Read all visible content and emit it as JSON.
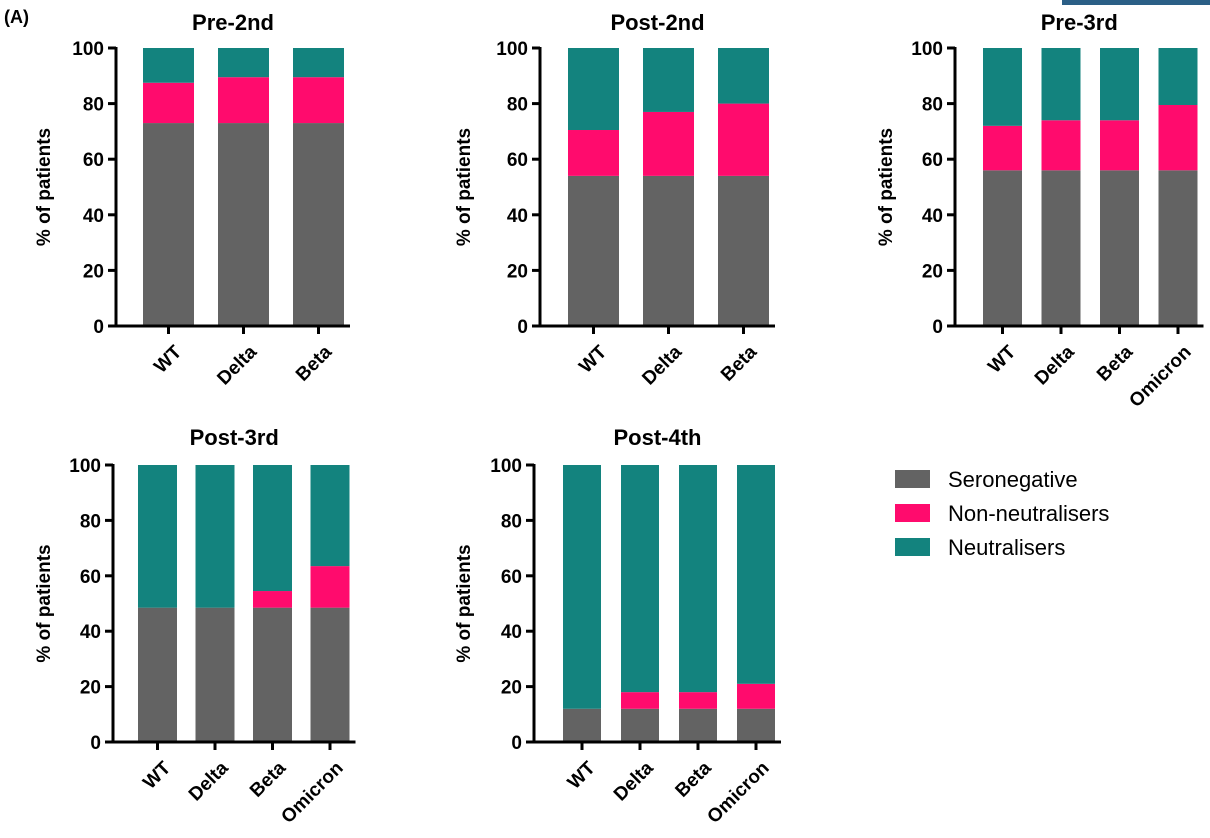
{
  "panel_label": "(A)",
  "colors": {
    "seronegative": "#636363",
    "non_neutralisers": "#ff0b6d",
    "neutralisers": "#13837e",
    "axis": "#000000"
  },
  "legend": {
    "placement": "right",
    "items": [
      {
        "label": "Seronegative",
        "color_key": "seronegative"
      },
      {
        "label": "Non-neutralisers",
        "color_key": "non_neutralisers"
      },
      {
        "label": "Neutralisers",
        "color_key": "neutralisers"
      }
    ]
  },
  "chart_data": [
    {
      "type": "bar",
      "stacked": true,
      "title": "Pre-2nd",
      "ylabel": "% of patients",
      "ylim": [
        0,
        100
      ],
      "yticks": [
        0,
        20,
        40,
        60,
        80,
        100
      ],
      "categories": [
        "WT",
        "Delta",
        "Beta"
      ],
      "series": [
        {
          "name": "Seronegative",
          "values": [
            73,
            73,
            73
          ]
        },
        {
          "name": "Non-neutralisers",
          "values": [
            14.5,
            16.5,
            16.5
          ]
        },
        {
          "name": "Neutralisers",
          "values": [
            12.5,
            10.5,
            10.5
          ]
        }
      ]
    },
    {
      "type": "bar",
      "stacked": true,
      "title": "Post-2nd",
      "ylabel": "% of patients",
      "ylim": [
        0,
        100
      ],
      "yticks": [
        0,
        20,
        40,
        60,
        80,
        100
      ],
      "categories": [
        "WT",
        "Delta",
        "Beta"
      ],
      "series": [
        {
          "name": "Seronegative",
          "values": [
            54,
            54,
            54
          ]
        },
        {
          "name": "Non-neutralisers",
          "values": [
            16.5,
            23,
            26
          ]
        },
        {
          "name": "Neutralisers",
          "values": [
            29.5,
            23,
            20
          ]
        }
      ]
    },
    {
      "type": "bar",
      "stacked": true,
      "title": "Pre-3rd",
      "ylabel": "% of patients",
      "ylim": [
        0,
        100
      ],
      "yticks": [
        0,
        20,
        40,
        60,
        80,
        100
      ],
      "categories": [
        "WT",
        "Delta",
        "Beta",
        "Omicron"
      ],
      "series": [
        {
          "name": "Seronegative",
          "values": [
            56,
            56,
            56,
            56
          ]
        },
        {
          "name": "Non-neutralisers",
          "values": [
            16,
            18,
            18,
            23.5
          ]
        },
        {
          "name": "Neutralisers",
          "values": [
            28,
            26,
            26,
            20.5
          ]
        }
      ]
    },
    {
      "type": "bar",
      "stacked": true,
      "title": "Post-3rd",
      "ylabel": "% of patients",
      "ylim": [
        0,
        100
      ],
      "yticks": [
        0,
        20,
        40,
        60,
        80,
        100
      ],
      "categories": [
        "WT",
        "Delta",
        "Beta",
        "Omicron"
      ],
      "series": [
        {
          "name": "Seronegative",
          "values": [
            48.5,
            48.5,
            48.5,
            48.5
          ]
        },
        {
          "name": "Non-neutralisers",
          "values": [
            0,
            0,
            6,
            15
          ]
        },
        {
          "name": "Neutralisers",
          "values": [
            51.5,
            51.5,
            45.5,
            36.5
          ]
        }
      ]
    },
    {
      "type": "bar",
      "stacked": true,
      "title": "Post-4th",
      "ylabel": "% of patients",
      "ylim": [
        0,
        100
      ],
      "yticks": [
        0,
        20,
        40,
        60,
        80,
        100
      ],
      "categories": [
        "WT",
        "Delta",
        "Beta",
        "Omicron"
      ],
      "series": [
        {
          "name": "Seronegative",
          "values": [
            12,
            12,
            12,
            12
          ]
        },
        {
          "name": "Non-neutralisers",
          "values": [
            0,
            6,
            6,
            9
          ]
        },
        {
          "name": "Neutralisers",
          "values": [
            88,
            82,
            82,
            79
          ]
        }
      ]
    }
  ]
}
